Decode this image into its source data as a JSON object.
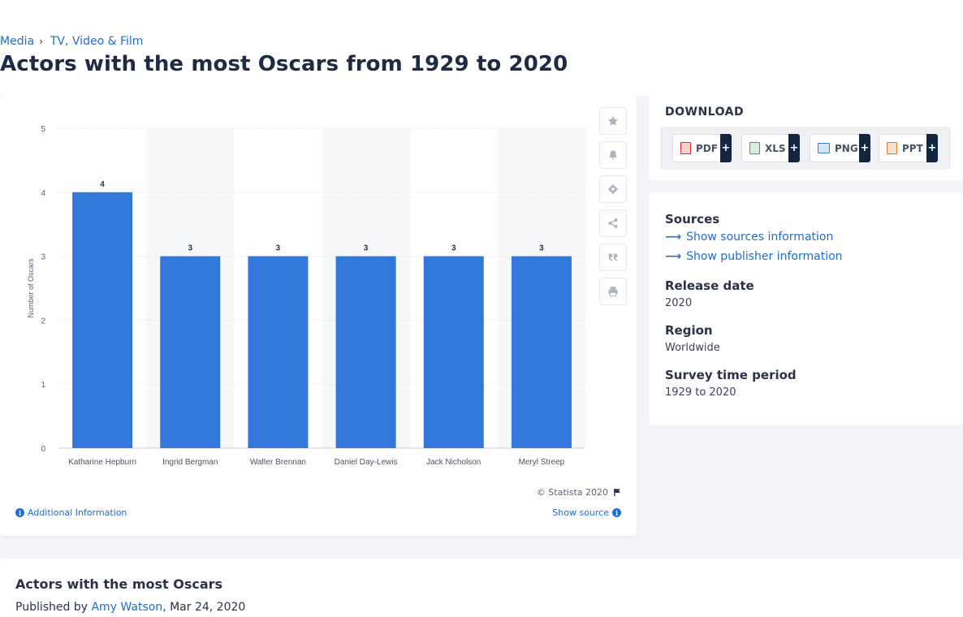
{
  "breadcrumb": {
    "items": [
      "Media",
      "TV, Video & Film"
    ],
    "separator": "›"
  },
  "page": {
    "title": "Actors with the most Oscars from 1929 to 2020"
  },
  "chart_data": {
    "type": "bar",
    "categories": [
      "Katharine Hepburn",
      "Ingrid Bergman",
      "Walter Brennan",
      "Daniel Day-Lewis",
      "Jack Nicholson",
      "Meryl Streep"
    ],
    "values": [
      4,
      3,
      3,
      3,
      3,
      3
    ],
    "data_labels": [
      "4",
      "3",
      "3",
      "3",
      "3",
      "3"
    ],
    "title": "",
    "xlabel": "",
    "ylabel": "Number of Oscars",
    "ylim": [
      0,
      5
    ],
    "yticks": [
      "0",
      "1",
      "2",
      "3",
      "4",
      "5"
    ],
    "grid": true,
    "bar_color": "#3277d9"
  },
  "chart_footer": {
    "copyright": "© Statista 2020",
    "additional_info": "Additional Information",
    "show_source": "Show source"
  },
  "toolbar": {
    "icons": [
      "star-icon",
      "bell-icon",
      "gear-icon",
      "share-icon",
      "quote-icon",
      "print-icon"
    ]
  },
  "download": {
    "title": "DOWNLOAD",
    "buttons": [
      {
        "label": "PDF",
        "color": "#d9302c"
      },
      {
        "label": "XLS",
        "color": "#3fa64a"
      },
      {
        "label": "PNG",
        "color": "#3c7fd1"
      },
      {
        "label": "PPT",
        "color": "#e0792b"
      }
    ],
    "plus": "+"
  },
  "details": {
    "sources_label": "Sources",
    "show_sources": "Show sources information",
    "show_publisher": "Show publisher information",
    "release_label": "Release date",
    "release_value": "2020",
    "region_label": "Region",
    "region_value": "Worldwide",
    "survey_label": "Survey time period",
    "survey_value": "1929 to 2020"
  },
  "article": {
    "title": "Actors with the most Oscars",
    "published_prefix": "Published by",
    "author": "Amy Watson",
    "date": ", Mar 24, 2020"
  }
}
